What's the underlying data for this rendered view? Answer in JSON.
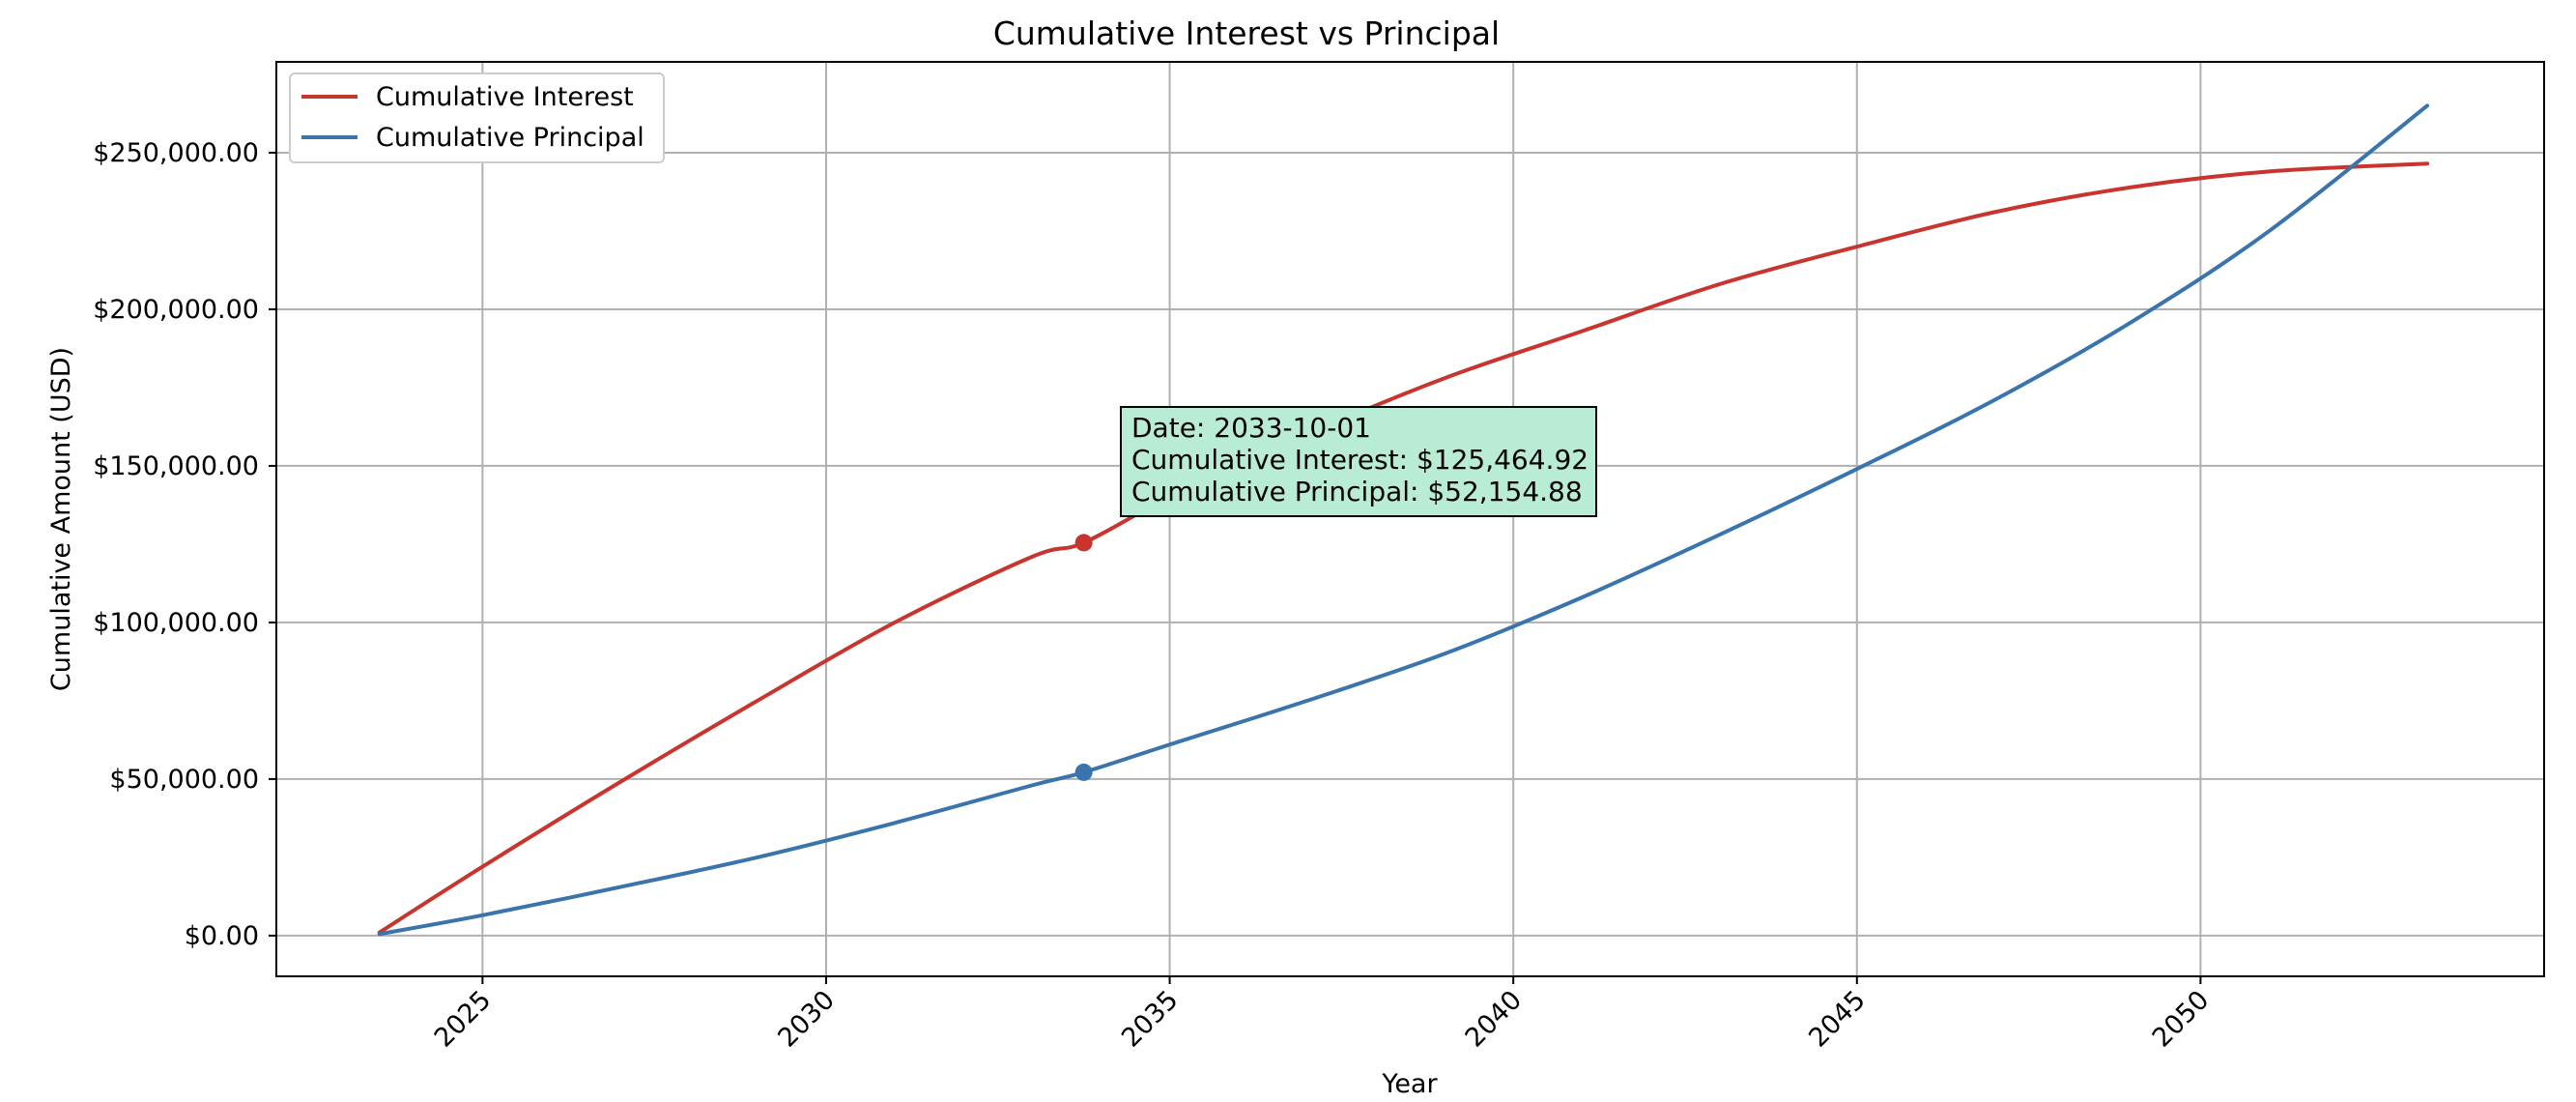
{
  "chart_data": {
    "type": "line",
    "title": "Cumulative Interest vs Principal",
    "xlabel": "Year",
    "ylabel": "Cumulative Amount (USD)",
    "xlim": [
      2022.0,
      2055.0
    ],
    "ylim": [
      -13000,
      279000
    ],
    "x_ticks": [
      2025,
      2030,
      2035,
      2040,
      2045,
      2050
    ],
    "y_ticks": [
      {
        "value": 0,
        "label": "$0.00"
      },
      {
        "value": 50000,
        "label": "$50,000.00"
      },
      {
        "value": 100000,
        "label": "$100,000.00"
      },
      {
        "value": 150000,
        "label": "$150,000.00"
      },
      {
        "value": 200000,
        "label": "$200,000.00"
      },
      {
        "value": 250000,
        "label": "$250,000.00"
      }
    ],
    "grid": true,
    "legend_position": "top-left",
    "series": [
      {
        "name": "Cumulative Interest",
        "color": "#c8352e",
        "x": [
          2023.5,
          2025,
          2027,
          2029,
          2031,
          2033,
          2033.75,
          2035,
          2037,
          2039,
          2041,
          2043,
          2045,
          2047,
          2049,
          2051,
          2053.3
        ],
        "values": [
          1000,
          22000,
          49000,
          75000,
          100000,
          121000,
          125465,
          140000,
          160000,
          178000,
          193000,
          208000,
          220000,
          231000,
          239000,
          244000,
          246500
        ]
      },
      {
        "name": "Cumulative Principal",
        "color": "#3a74ad",
        "x": [
          2023.5,
          2025,
          2027,
          2029,
          2031,
          2033,
          2033.75,
          2035,
          2037,
          2039,
          2041,
          2043,
          2045,
          2047,
          2049,
          2051,
          2053.3
        ],
        "values": [
          500,
          6500,
          15500,
          25000,
          36000,
          48000,
          52155,
          61000,
          75000,
          90000,
          108000,
          128000,
          149000,
          171000,
          196000,
          225000,
          265000
        ]
      }
    ],
    "highlight": {
      "x": 2033.75,
      "points": [
        {
          "series": "Cumulative Interest",
          "value": 125464.92
        },
        {
          "series": "Cumulative Principal",
          "value": 52154.88
        }
      ]
    },
    "annotation": {
      "lines": [
        "Date: 2033-10-01",
        "Cumulative Interest: $125,464.92",
        "Cumulative Principal: $52,154.88"
      ],
      "background": "#b8ecd4"
    }
  }
}
